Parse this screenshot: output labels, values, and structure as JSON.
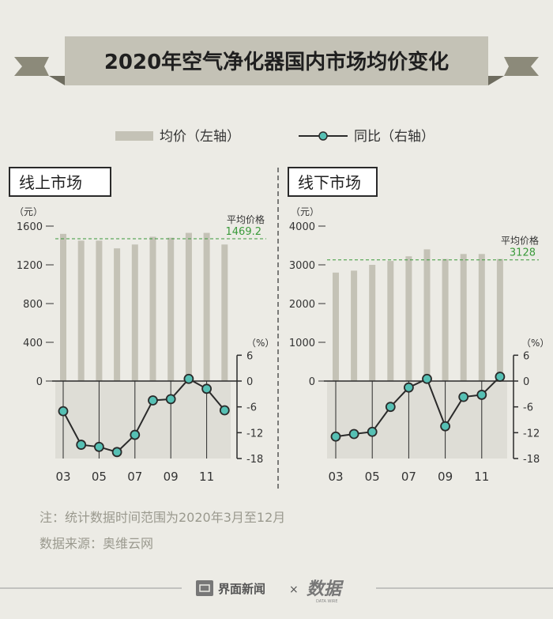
{
  "title": "2020年空气净化器国内市场均价变化",
  "legend": {
    "bar_label": "均价（左轴）",
    "line_label": "同比（右轴）"
  },
  "colors": {
    "background": "#ecebe5",
    "bar": "#c4c2b6",
    "line": "#2a2a2a",
    "marker": "#56c0b4",
    "avg_line": "#3a9a3a",
    "lower_panel": "#deddd6",
    "banner": "#c4c2b6"
  },
  "chart_data": [
    {
      "type": "bar",
      "panel_title": "线上市场",
      "categories": [
        "03",
        "04",
        "05",
        "06",
        "07",
        "08",
        "09",
        "10",
        "11",
        "12"
      ],
      "x_tick_labels": [
        "03",
        "05",
        "07",
        "09",
        "11"
      ],
      "left_axis": {
        "unit": "（元）",
        "ticks": [
          0,
          400,
          800,
          1200,
          1600
        ],
        "ylim": [
          0,
          1600
        ]
      },
      "right_axis": {
        "unit": "（%）",
        "ticks": [
          6,
          0,
          -6,
          -12,
          -18
        ],
        "ylim": [
          -18,
          6
        ]
      },
      "series": [
        {
          "values": [
            1520,
            1450,
            1450,
            1370,
            1410,
            1490,
            1480,
            1530,
            1530,
            1410
          ]
        },
        {
          "values": [
            -7,
            -14.8,
            -15.3,
            -16.5,
            -12.5,
            -4.5,
            -4.2,
            0.5,
            -1.8,
            -6.8
          ]
        }
      ],
      "average": {
        "label": "平均价格",
        "value_text": "1469.2",
        "value": 1469.2
      }
    },
    {
      "type": "bar",
      "panel_title": "线下市场",
      "categories": [
        "03",
        "04",
        "05",
        "06",
        "07",
        "08",
        "09",
        "10",
        "11",
        "12"
      ],
      "x_tick_labels": [
        "03",
        "05",
        "07",
        "09",
        "11"
      ],
      "left_axis": {
        "unit": "（元）",
        "ticks": [
          0,
          1000,
          2000,
          3000,
          4000
        ],
        "ylim": [
          0,
          4000
        ]
      },
      "right_axis": {
        "unit": "（%）",
        "ticks": [
          6,
          0,
          -6,
          -12,
          -18
        ],
        "ylim": [
          -18,
          6
        ]
      },
      "series": [
        {
          "values": [
            2800,
            2850,
            3000,
            3100,
            3220,
            3400,
            3150,
            3280,
            3280,
            3150
          ]
        },
        {
          "values": [
            -12.9,
            -12.3,
            -11.8,
            -6,
            -1.5,
            0.5,
            -10.5,
            -3.7,
            -3.2,
            1
          ]
        }
      ],
      "average": {
        "label": "平均价格",
        "value_text": "3128",
        "value": 3128
      }
    }
  ],
  "notes": [
    "注：统计数据时间范围为2020年3月至12月",
    "数据来源：奥维云网"
  ],
  "footer": {
    "brand": "界面新闻",
    "separator": "×",
    "brand2": "数据"
  }
}
